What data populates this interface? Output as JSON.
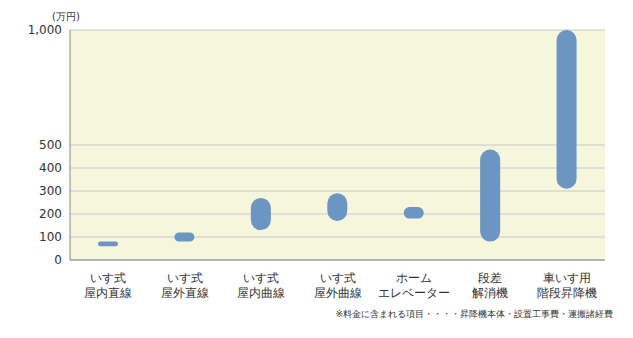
{
  "chart_data": {
    "type": "range_bar",
    "ylabel": "(万円)",
    "footnote": "※料金に含まれる項目・・・・昇降機本体・設置工事費・運搬諸経費",
    "categories": [
      "いす式\n屋内直線",
      "いす式\n屋外直線",
      "いす式\n屋内曲線",
      "いす式\n屋外曲線",
      "ホーム\nエレベーター",
      "段差\n解消機",
      "車いす用\n階段昇降機"
    ],
    "values": [
      [
        60,
        80
      ],
      [
        80,
        120
      ],
      [
        130,
        270
      ],
      [
        170,
        290
      ],
      [
        180,
        230
      ],
      [
        80,
        480
      ],
      [
        310,
        1000
      ]
    ],
    "color": "#6b96c3",
    "ylim": [
      0,
      1000
    ],
    "yticks": [
      0,
      100,
      200,
      300,
      400,
      500,
      {
        "value": 1000,
        "label": "1,000"
      }
    ],
    "grid": true
  }
}
